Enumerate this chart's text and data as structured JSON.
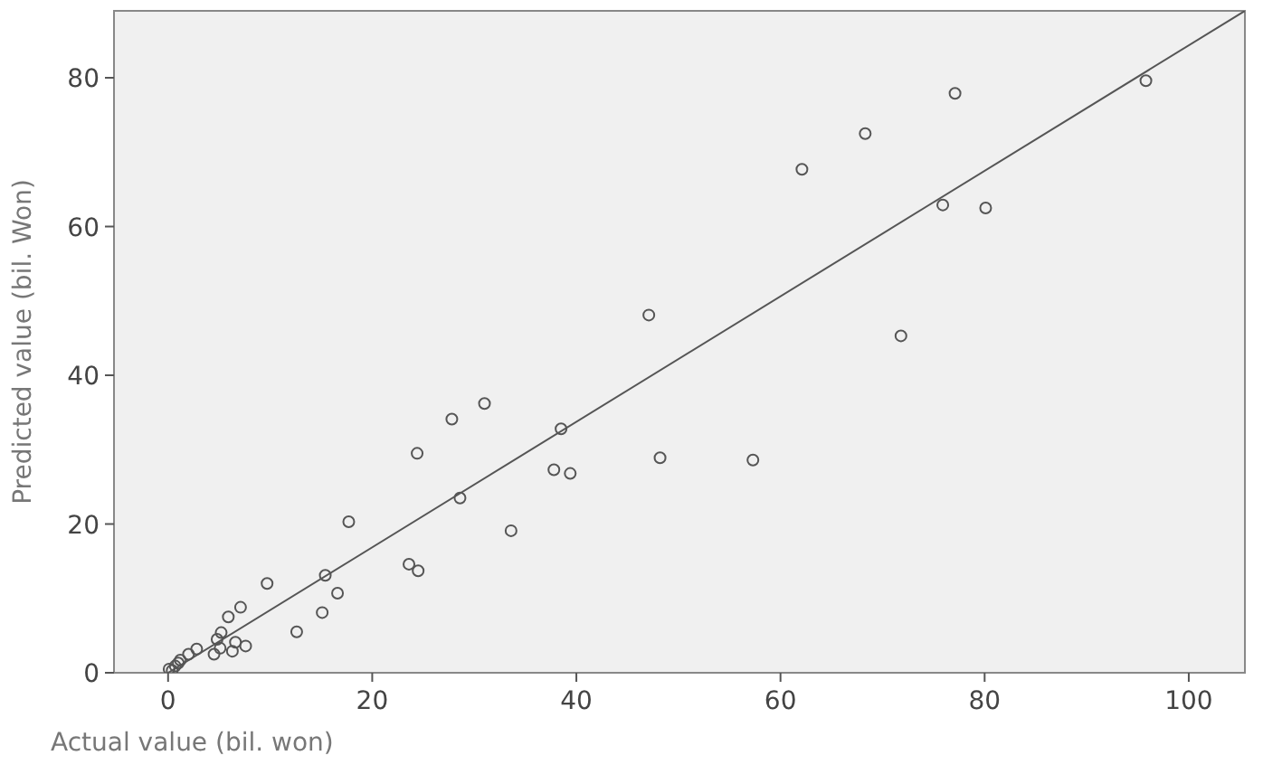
{
  "chart_data": {
    "type": "scatter",
    "xlabel": "Actual value (bil. won)",
    "ylabel": "Predicted value (bil. Won)",
    "xlim": [
      -5.3,
      105.5
    ],
    "ylim": [
      0,
      89
    ],
    "xticks": [
      0,
      20,
      40,
      60,
      80,
      100
    ],
    "yticks": [
      0,
      20,
      40,
      60,
      80
    ],
    "grid": false,
    "series": [
      {
        "marker": "circle",
        "color": "#555555",
        "x": [
          62.1,
          68.3,
          77.1,
          95.8,
          75.9,
          80.1,
          71.8,
          57.3,
          47.1,
          48.2,
          31.0,
          27.8,
          24.4,
          38.5,
          37.8,
          39.4,
          28.6,
          33.6,
          17.7,
          23.6,
          24.5,
          9.7,
          15.4,
          16.6,
          15.1,
          12.6,
          7.1,
          5.9,
          5.2,
          7.6,
          6.3,
          4.5,
          2.8,
          2.0,
          5.1,
          4.8,
          6.6,
          1.2,
          0.7,
          0.1,
          1.0,
          0.4
        ],
        "values": [
          67.7,
          72.5,
          77.9,
          79.6,
          62.9,
          62.5,
          45.3,
          28.6,
          48.1,
          28.9,
          36.2,
          34.1,
          29.5,
          32.8,
          27.3,
          26.8,
          23.5,
          19.1,
          20.3,
          14.6,
          13.7,
          12.0,
          13.1,
          10.7,
          8.1,
          5.5,
          8.8,
          7.5,
          5.4,
          3.6,
          2.9,
          2.5,
          3.2,
          2.5,
          3.3,
          4.5,
          4.1,
          1.7,
          0.9,
          0.5,
          1.3,
          0.3
        ]
      },
      {
        "type": "line",
        "color": "#555555",
        "x": [
          0,
          105.5
        ],
        "values": [
          0,
          89
        ]
      }
    ]
  }
}
